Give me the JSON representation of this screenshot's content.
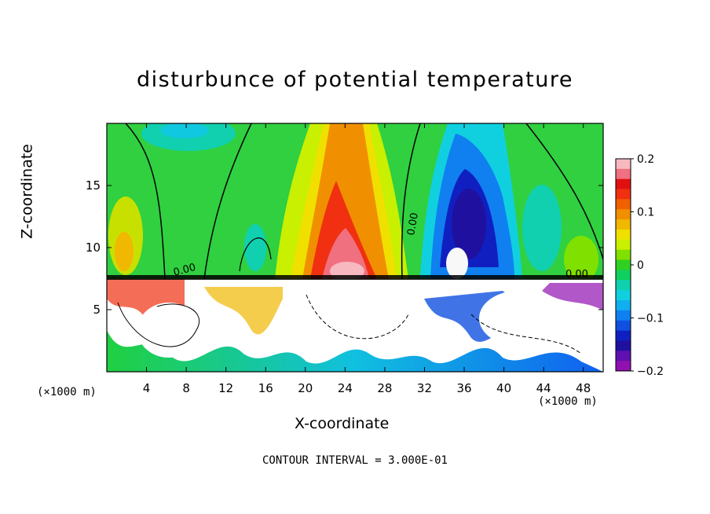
{
  "chart_data": {
    "type": "heatmap",
    "title": "disturbunce of potential temperature",
    "xlabel": "X-coordinate",
    "ylabel": "Z-coordinate",
    "x_unit": "(×1000 m)",
    "x_ticks": [
      4,
      8,
      12,
      16,
      20,
      24,
      28,
      32,
      36,
      40,
      44,
      48
    ],
    "y_ticks": [
      5,
      10,
      15
    ],
    "xlim": [
      0,
      50
    ],
    "ylim": [
      0,
      20
    ],
    "colorbar": {
      "ticks": [
        "0.2",
        "0.1",
        "0",
        "−0.1",
        "−0.2"
      ],
      "range": [
        -0.2,
        0.2
      ],
      "colors": [
        "#f8b8c0",
        "#f07080",
        "#e01010",
        "#f03010",
        "#f06000",
        "#f09000",
        "#f0b800",
        "#f0e000",
        "#c8f000",
        "#80e000",
        "#30d020",
        "#10d060",
        "#10d0b0",
        "#10d0e0",
        "#10b0f0",
        "#1080f0",
        "#1050e0",
        "#1020c0",
        "#2010a0",
        "#6010b0",
        "#9010b0"
      ]
    },
    "contour_labels": [
      "0.00",
      "0.00",
      "0.00"
    ],
    "note": "CONTOUR INTERVAL = 3.000E-01"
  }
}
